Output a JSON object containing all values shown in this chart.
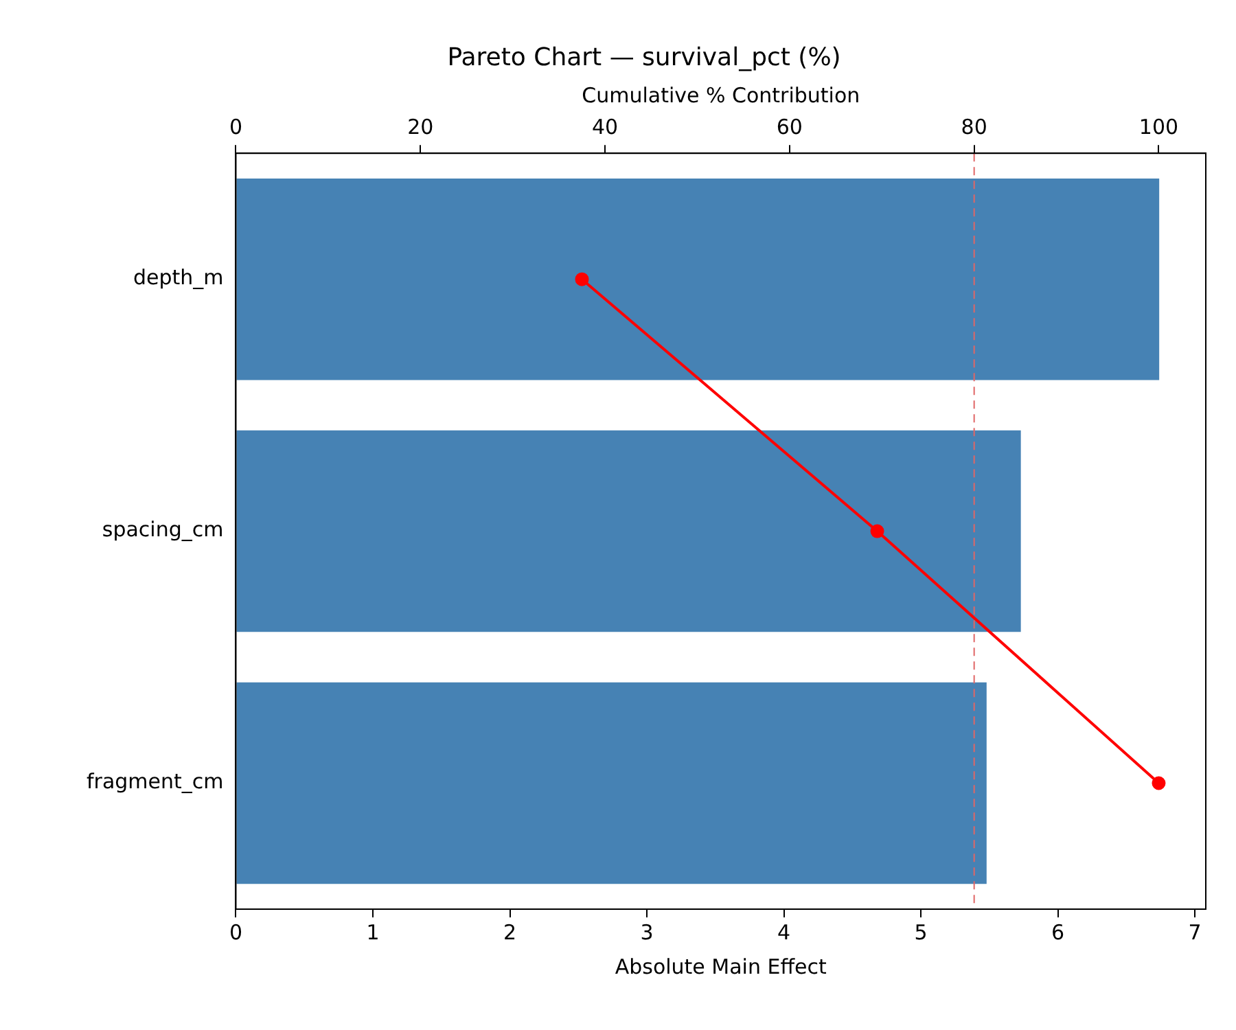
{
  "chart_data": {
    "type": "bar",
    "orientation": "horizontal",
    "title": "Pareto Chart — survival_pct (%)",
    "xlabel": "Absolute Main Effect",
    "x2label": "Cumulative % Contribution",
    "categories": [
      "depth_m",
      "spacing_cm",
      "fragment_cm"
    ],
    "series": [
      {
        "color": "#4682b4",
        "values": [
          6.74,
          5.73,
          5.48
        ]
      },
      {
        "type": "line",
        "axis": "x2",
        "color": "#ff0000",
        "values": [
          37.5,
          69.5,
          100
        ],
        "marker": "circle",
        "line_style": "solid"
      }
    ],
    "xlim": [
      0,
      7.08
    ],
    "xticks": [
      0,
      1,
      2,
      3,
      4,
      5,
      6,
      7
    ],
    "x2lim": [
      0,
      105.1
    ],
    "x2ticks": [
      0,
      20,
      40,
      60,
      80,
      100
    ],
    "ref_lines": [
      {
        "axis": "x2",
        "value": 80,
        "color": "#e06666",
        "line_style": "dashed"
      }
    ],
    "grid": false,
    "legend": false
  }
}
